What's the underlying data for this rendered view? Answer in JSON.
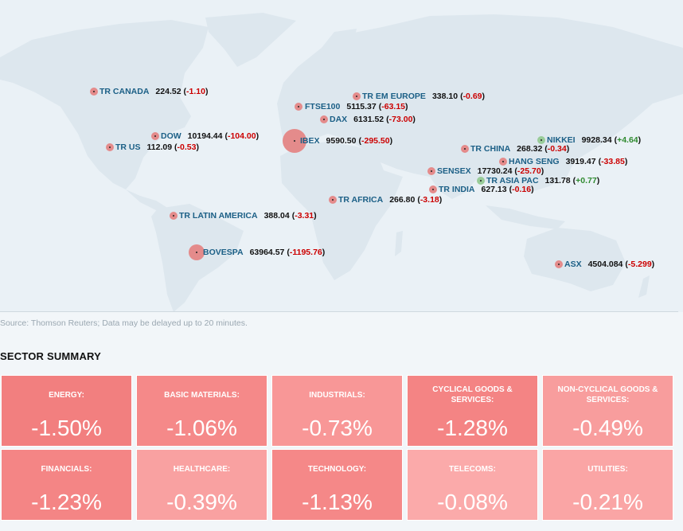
{
  "markets": [
    {
      "id": "tr-canada",
      "name": "TR CANADA",
      "value": "224.52",
      "change": "-1.10",
      "dir": "neg"
    },
    {
      "id": "tr-em-europe",
      "name": "TR EM EUROPE",
      "value": "338.10",
      "change": "-0.69",
      "dir": "neg"
    },
    {
      "id": "ftse100",
      "name": "FTSE100",
      "value": "5115.37",
      "change": "-63.15",
      "dir": "neg"
    },
    {
      "id": "dax",
      "name": "DAX",
      "value": "6131.52",
      "change": "-73.00",
      "dir": "neg"
    },
    {
      "id": "dow",
      "name": "DOW",
      "value": "10194.44",
      "change": "-104.00",
      "dir": "neg"
    },
    {
      "id": "tr-us",
      "name": "TR US",
      "value": "112.09",
      "change": "-0.53",
      "dir": "neg"
    },
    {
      "id": "ibex",
      "name": "IBEX",
      "value": "9590.50",
      "change": "-295.50",
      "dir": "neg"
    },
    {
      "id": "nikkei",
      "name": "NIKKEI",
      "value": "9928.34",
      "change": "+4.64",
      "dir": "pos"
    },
    {
      "id": "tr-china",
      "name": "TR CHINA",
      "value": "268.32",
      "change": "-0.34",
      "dir": "neg"
    },
    {
      "id": "hang-seng",
      "name": "HANG SENG",
      "value": "3919.47",
      "change": "-33.85",
      "dir": "neg"
    },
    {
      "id": "sensex",
      "name": "SENSEX",
      "value": "17730.24",
      "change": "-25.70",
      "dir": "neg"
    },
    {
      "id": "tr-asia-pac",
      "name": "TR ASIA PAC",
      "value": "131.78",
      "change": "+0.77",
      "dir": "pos"
    },
    {
      "id": "tr-india",
      "name": "TR INDIA",
      "value": "627.13",
      "change": "-0.16",
      "dir": "neg"
    },
    {
      "id": "tr-africa",
      "name": "TR AFRICA",
      "value": "266.80",
      "change": "-3.18",
      "dir": "neg"
    },
    {
      "id": "tr-latin-america",
      "name": "TR LATIN AMERICA",
      "value": "388.04",
      "change": "-3.31",
      "dir": "neg"
    },
    {
      "id": "bovespa",
      "name": "BOVESPA",
      "value": "63964.57",
      "change": "-1195.76",
      "dir": "neg"
    },
    {
      "id": "asx",
      "name": "ASX",
      "value": "4504.084",
      "change": "-5.299",
      "dir": "neg"
    }
  ],
  "source_note": "Source: Thomson Reuters; Data may be delayed up to 20 minutes.",
  "sector_title": "SECTOR SUMMARY",
  "sectors": [
    {
      "id": "energy",
      "label": "ENERGY:",
      "value": "-1.50%",
      "color": "#f27f7f"
    },
    {
      "id": "basic-materials",
      "label": "BASIC MATERIALS:",
      "value": "-1.06%",
      "color": "#f58989"
    },
    {
      "id": "industrials",
      "label": "INDUSTRIALS:",
      "value": "-0.73%",
      "color": "#f89797"
    },
    {
      "id": "cyclical-goods",
      "label": "CYCLICAL GOODS & SERVICES:",
      "value": "-1.28%",
      "color": "#f48484"
    },
    {
      "id": "non-cyclical-goods",
      "label": "NON-CYCLICAL GOODS & SERVICES:",
      "value": "-0.49%",
      "color": "#f89d9d"
    },
    {
      "id": "financials",
      "label": "FINANCIALS:",
      "value": "-1.23%",
      "color": "#f48585"
    },
    {
      "id": "healthcare",
      "label": "HEALTHCARE:",
      "value": "-0.39%",
      "color": "#f9a1a1"
    },
    {
      "id": "technology",
      "label": "TECHNOLOGY:",
      "value": "-1.13%",
      "color": "#f58888"
    },
    {
      "id": "telecoms",
      "label": "TELECOMS:",
      "value": "-0.08%",
      "color": "#fbaaaa"
    },
    {
      "id": "utilities",
      "label": "UTILITIES:",
      "value": "-0.21%",
      "color": "#faa5a5"
    }
  ]
}
